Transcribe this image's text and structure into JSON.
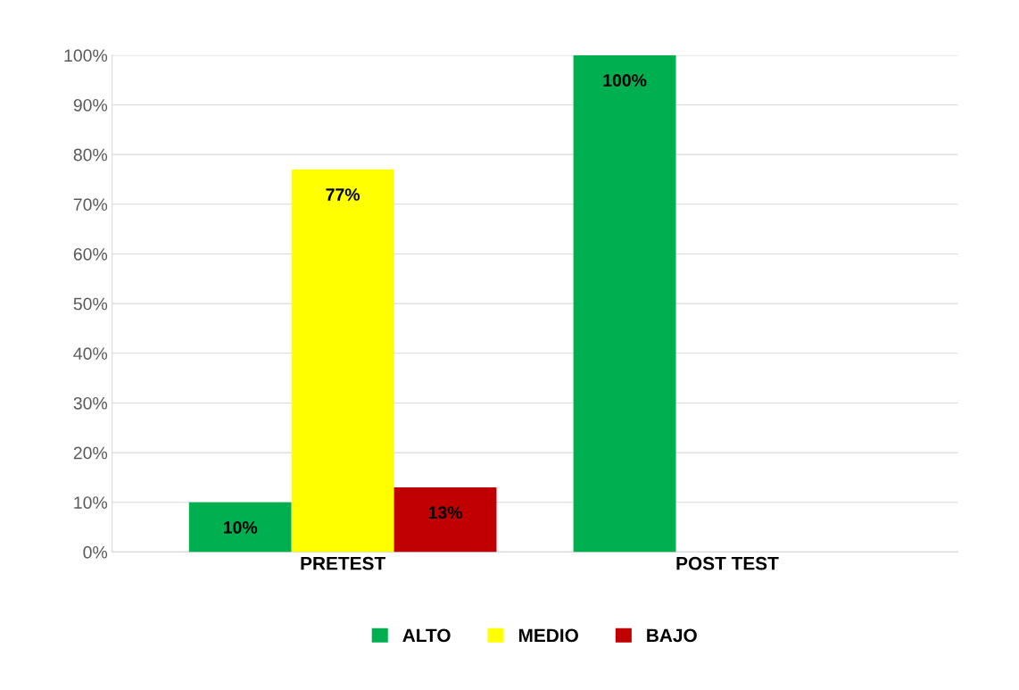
{
  "chart_data": {
    "type": "bar",
    "categories": [
      "PRETEST",
      "POST TEST"
    ],
    "series": [
      {
        "name": "ALTO",
        "color": "#00b050",
        "values": [
          10,
          100
        ],
        "value_labels": [
          "10%",
          "100%"
        ]
      },
      {
        "name": "MEDIO",
        "color": "#ffff00",
        "values": [
          77,
          null
        ],
        "value_labels": [
          "77%",
          null
        ]
      },
      {
        "name": "BAJO",
        "color": "#c00000",
        "values": [
          13,
          null
        ],
        "value_labels": [
          "13%",
          null
        ]
      }
    ],
    "ylim": [
      0,
      100
    ],
    "yticks": [
      {
        "value": 0,
        "label": "0%"
      },
      {
        "value": 10,
        "label": "10%"
      },
      {
        "value": 20,
        "label": "20%"
      },
      {
        "value": 30,
        "label": "30%"
      },
      {
        "value": 40,
        "label": "40%"
      },
      {
        "value": 50,
        "label": "50%"
      },
      {
        "value": 60,
        "label": "60%"
      },
      {
        "value": 70,
        "label": "70%"
      },
      {
        "value": 80,
        "label": "80%"
      },
      {
        "value": 90,
        "label": "90%"
      },
      {
        "value": 100,
        "label": "100%"
      }
    ],
    "grid": "y",
    "legend": "bottom"
  }
}
